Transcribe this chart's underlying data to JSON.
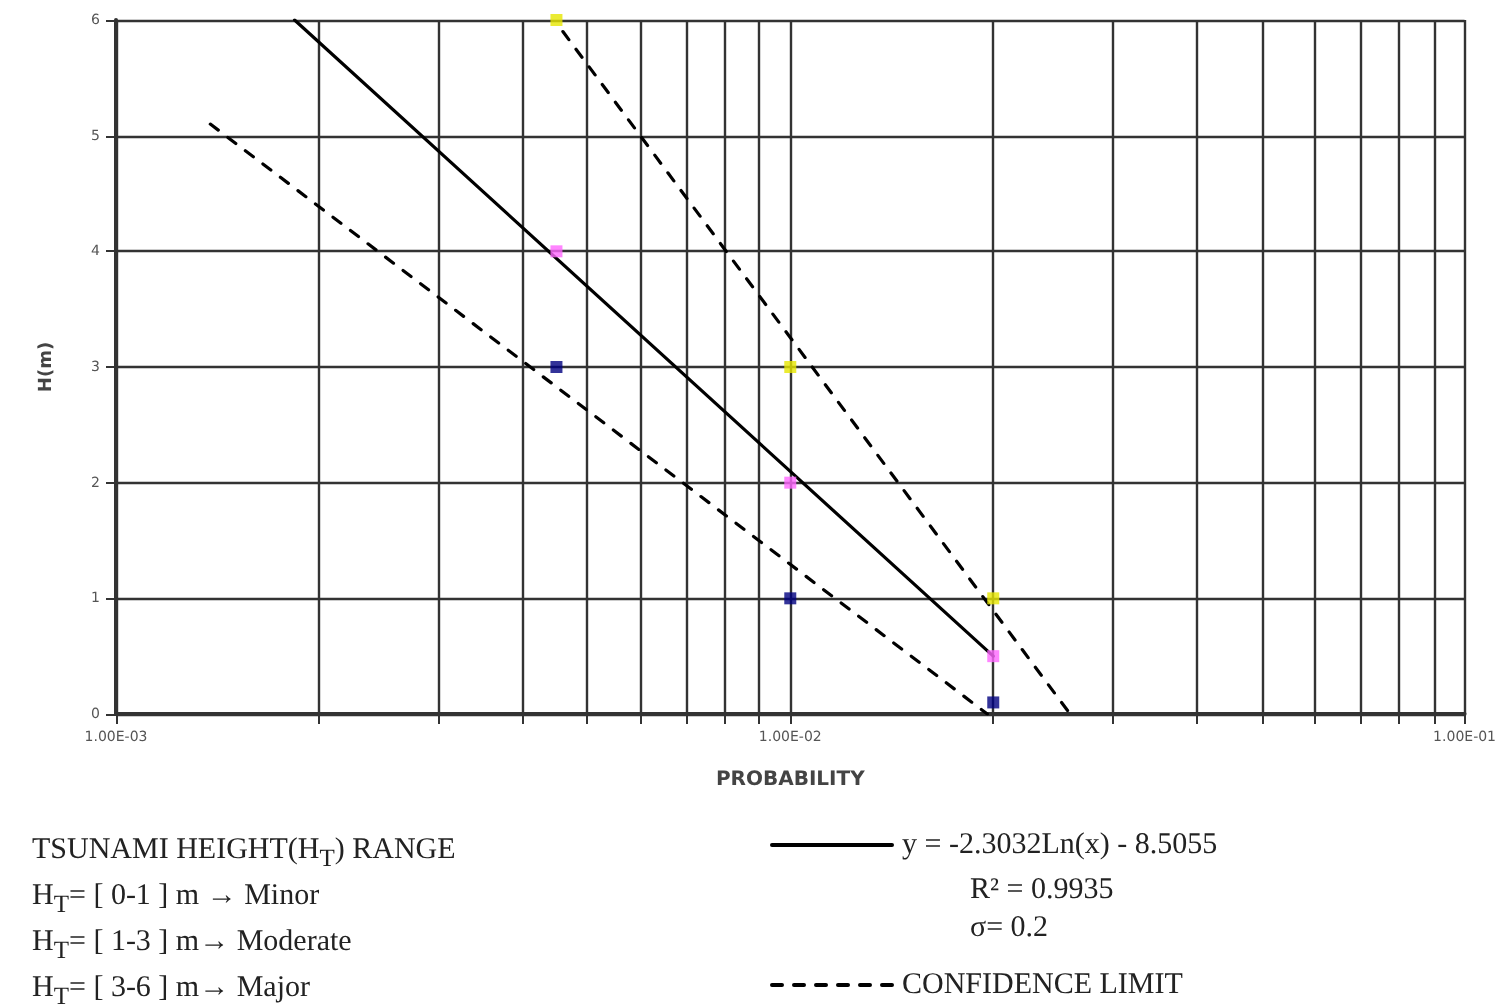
{
  "chart_data": {
    "type": "scatter",
    "xlabel": "PROBABILITY",
    "ylabel": "H(m)",
    "log": "x",
    "grid": true,
    "legend": "bottom right",
    "xlim": [
      0.001,
      0.1
    ],
    "xticks": [
      {
        "value": 0.001,
        "label": "1.00E-03"
      },
      {
        "value": 0.002,
        "label": null
      },
      {
        "value": 0.003,
        "label": null
      },
      {
        "value": 0.004,
        "label": null
      },
      {
        "value": 0.005,
        "label": null
      },
      {
        "value": 0.006,
        "label": null
      },
      {
        "value": 0.007,
        "label": null
      },
      {
        "value": 0.008,
        "label": null
      },
      {
        "value": 0.009,
        "label": null
      },
      {
        "value": 0.01,
        "label": "1.00E-02"
      },
      {
        "value": 0.02,
        "label": null
      },
      {
        "value": 0.03,
        "label": null
      },
      {
        "value": 0.04,
        "label": null
      },
      {
        "value": 0.05,
        "label": null
      },
      {
        "value": 0.06,
        "label": null
      },
      {
        "value": 0.07,
        "label": null
      },
      {
        "value": 0.08,
        "label": null
      },
      {
        "value": 0.09,
        "label": null
      },
      {
        "value": 0.1,
        "label": "1.00E-01"
      }
    ],
    "ylim": [
      0,
      6
    ],
    "yticks": [
      0,
      1,
      2,
      3,
      4,
      5,
      6
    ],
    "series": [
      {
        "color": "#e6e600",
        "marker": "square",
        "x": [
          0.0045,
          0.01,
          0.02
        ],
        "values": [
          6,
          3,
          1
        ]
      },
      {
        "color": "#ff66ff",
        "marker": "square",
        "x": [
          0.0045,
          0.01,
          0.02
        ],
        "values": [
          4,
          2,
          0.5
        ]
      },
      {
        "color": "#000080",
        "marker": "square",
        "x": [
          0.0045,
          0.01,
          0.02
        ],
        "values": [
          3,
          1,
          0.1
        ]
      },
      {
        "type": "line",
        "name": "y = -2.3032Ln(x) - 8.5055",
        "color": "#000000",
        "marker": "none",
        "line_style": "solid",
        "x": [
          0.00184,
          0.02
        ],
        "values": [
          6,
          0.5
        ]
      },
      {
        "type": "line",
        "name": "CONFIDENCE LIMIT",
        "color": "#000000",
        "marker": "none",
        "line_style": "dashed",
        "x": [
          0.0046,
          0.026
        ],
        "values": [
          5.9,
          0
        ]
      },
      {
        "type": "line",
        "color": "#000000",
        "marker": "none",
        "line_style": "dashed",
        "x": [
          0.00138,
          0.0196
        ],
        "values": [
          5.1,
          0
        ]
      }
    ],
    "annotations": [
      "TSUNAMI HEIGHT(H$_{T}$) RANGE",
      "H$_{T}$= [ 0-1 ] m → Minor",
      "H$_{T}$= [ 1-3 ] m→ Moderate",
      "H$_{T}$= [ 3-6 ] m→ Major",
      "R² = 0.9935",
      "σ= 0.2"
    ]
  }
}
